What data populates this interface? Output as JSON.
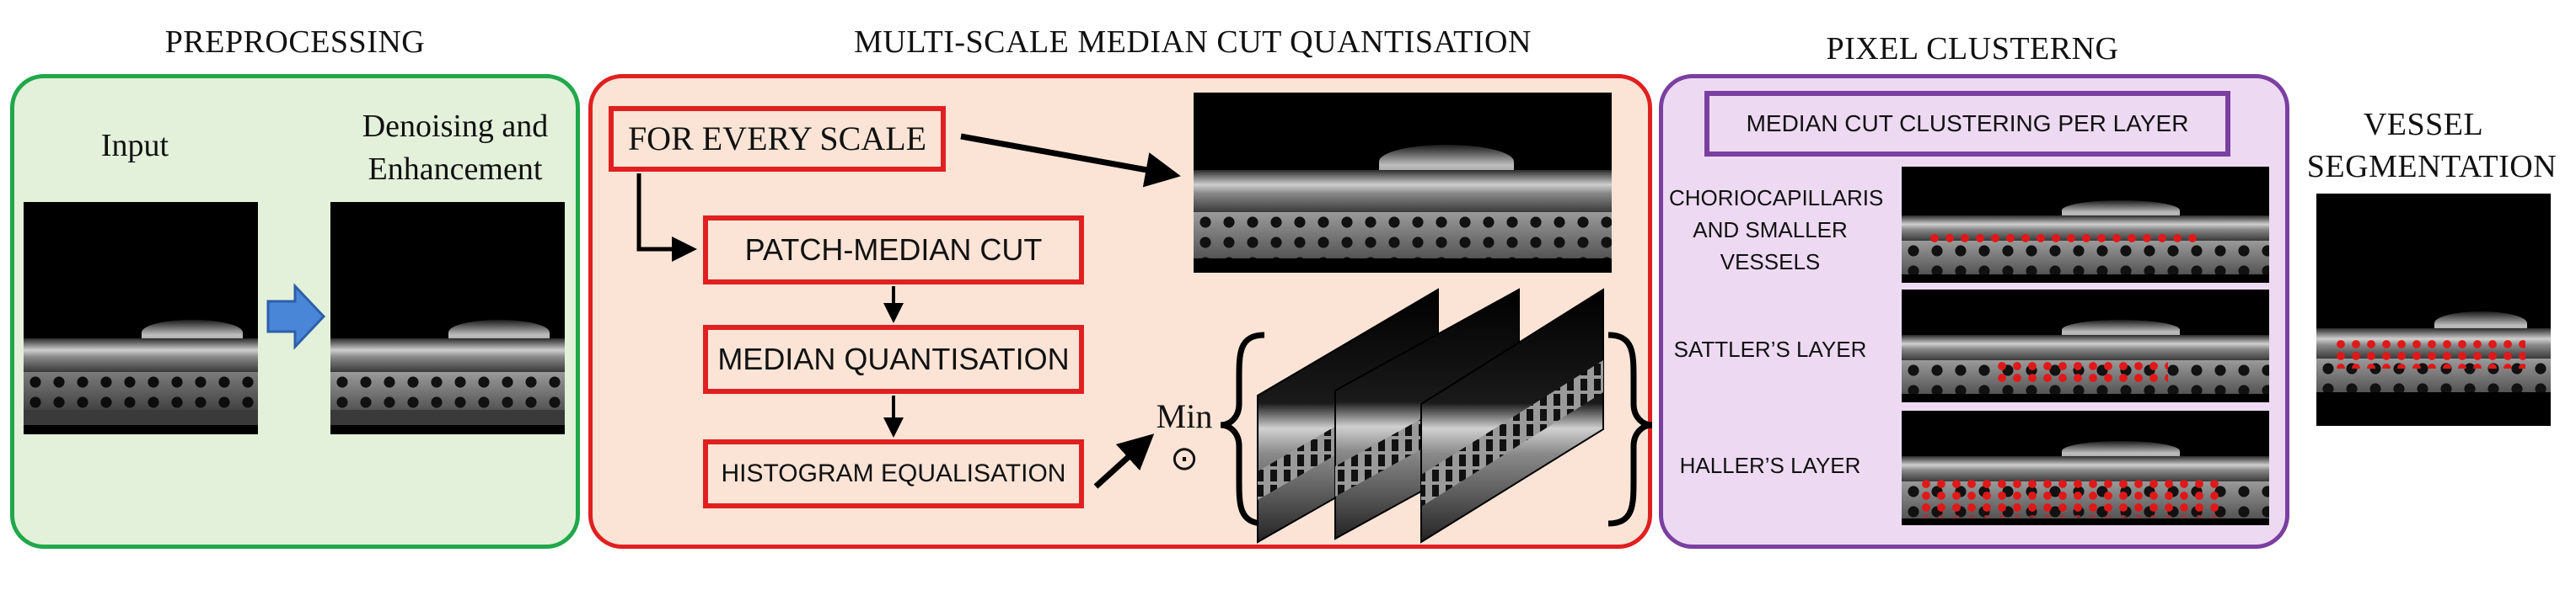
{
  "sections": {
    "preprocessing": "PREPROCESSING",
    "quantisation": "MULTI-SCALE MEDIAN CUT QUANTISATION",
    "clustering": "PIXEL CLUSTERNG",
    "segmentation_line1": "VESSEL",
    "segmentation_line2": "SEGMENTATION"
  },
  "preprocessing": {
    "input_label": "Input",
    "denoise_line1": "Denoising and",
    "denoise_line2": "Enhancement"
  },
  "quantisation": {
    "for_every_scale": "FOR EVERY SCALE",
    "patch_median_cut": "PATCH-MEDIAN CUT",
    "median_quantisation": "MEDIAN QUANTISATION",
    "histogram_equalisation": "HISTOGRAM EQUALISATION",
    "min_label": "Min",
    "odot_symbol": "⊙"
  },
  "clustering": {
    "header": "MEDIAN CUT CLUSTERING PER LAYER",
    "layer1_line1": "CHORIOCAPILLARIS",
    "layer1_line2": "AND SMALLER",
    "layer1_line3": "VESSELS",
    "layer2": "SATTLER’S LAYER",
    "layer3": "HALLER’S LAYER"
  },
  "colors": {
    "green_border": "#20a84a",
    "green_fill": "#e3f0da",
    "red_border": "#e02020",
    "red_fill": "#fbe4d6",
    "purple_border": "#7a3fa0",
    "purple_fill": "#eddaf2",
    "blue_arrow": "#4a86d8"
  },
  "icons": {
    "blue_arrow": "right-arrow-icon",
    "black_arrow": "arrow-icon"
  }
}
